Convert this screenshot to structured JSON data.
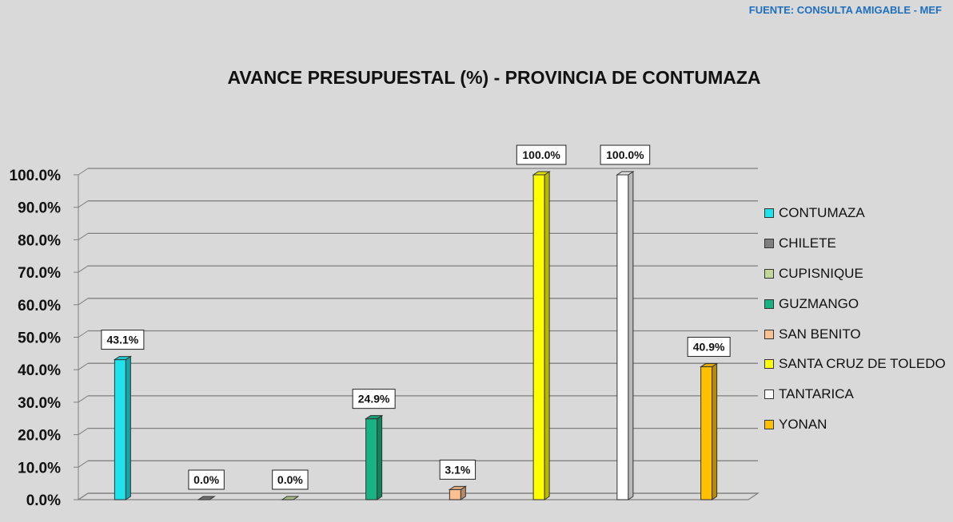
{
  "source_note": "FUENTE:  CONSULTA AMIGABLE  - MEF",
  "chart_data": {
    "type": "bar",
    "title": "AVANCE PRESUPUESTAL (%) - PROVINCIA DE CONTUMAZA",
    "xlabel": "",
    "ylabel": "",
    "ylim": [
      0,
      100
    ],
    "y_ticks": [
      "0.0%",
      "10.0%",
      "20.0%",
      "30.0%",
      "40.0%",
      "50.0%",
      "60.0%",
      "70.0%",
      "80.0%",
      "90.0%",
      "100.0%"
    ],
    "grid": true,
    "legend_position": "right",
    "categories": [
      "CONTUMAZA",
      "CHILETE",
      "CUPISNIQUE",
      "GUZMANGO",
      "SAN BENITO",
      "SANTA CRUZ DE TOLEDO",
      "TANTARICA",
      "YONAN"
    ],
    "values": [
      43.1,
      0.0,
      0.0,
      24.9,
      3.1,
      100.0,
      100.0,
      40.9
    ],
    "data_labels": [
      "43.1%",
      "0.0%",
      "0.0%",
      "24.9%",
      "3.1%",
      "100.0%",
      "100.0%",
      "40.9%"
    ],
    "colors": [
      "#1fe3ea",
      "#7f7f7f",
      "#c4d79b",
      "#17b383",
      "#fac090",
      "#ffff00",
      "#ffffff",
      "#ffc000"
    ]
  }
}
